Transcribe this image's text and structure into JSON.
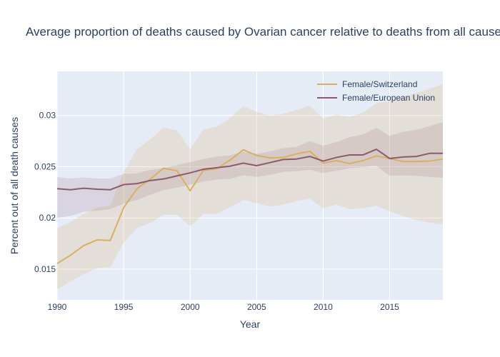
{
  "chart_data": {
    "type": "line",
    "title": "Average proportion of deaths caused by Ovarian cancer relative to deaths from all causes",
    "xlabel": "Year",
    "ylabel": "Percent out of all death causes",
    "xlim": [
      1990,
      2019
    ],
    "ylim": [
      0.012,
      0.0343
    ],
    "x_ticks": [
      1990,
      1995,
      2000,
      2005,
      2010,
      2015
    ],
    "x_tick_labels": [
      "1990",
      "1995",
      "2000",
      "2005",
      "2010",
      "2015"
    ],
    "y_ticks": [
      0.015,
      0.02,
      0.025,
      0.03
    ],
    "y_tick_labels": [
      "0.015",
      "0.02",
      "0.025",
      "0.03"
    ],
    "grid": true,
    "legend_position": "top-right",
    "x": [
      1990,
      1991,
      1992,
      1993,
      1994,
      1995,
      1996,
      1997,
      1998,
      1999,
      2000,
      2001,
      2002,
      2003,
      2004,
      2005,
      2006,
      2007,
      2008,
      2009,
      2010,
      2011,
      2012,
      2013,
      2014,
      2015,
      2016,
      2017,
      2018,
      2019
    ],
    "series": [
      {
        "name": "Female/Switzerland",
        "color": "#dcae62",
        "band_color": "rgba(220,174,98,0.2)",
        "values": [
          0.01555,
          0.01635,
          0.0173,
          0.01785,
          0.0178,
          0.021,
          0.02285,
          0.0238,
          0.02485,
          0.0246,
          0.02265,
          0.02465,
          0.0248,
          0.02565,
          0.02665,
          0.0261,
          0.02585,
          0.0259,
          0.02625,
          0.0265,
          0.02535,
          0.0256,
          0.0253,
          0.0256,
          0.02605,
          0.0258,
          0.0255,
          0.0255,
          0.02555,
          0.02575
        ],
        "upper": [
          0.019,
          0.0196,
          0.0204,
          0.021,
          0.0212,
          0.0245,
          0.0267,
          0.0277,
          0.0288,
          0.02855,
          0.0267,
          0.02865,
          0.0289,
          0.02975,
          0.0309,
          0.03035,
          0.03,
          0.03015,
          0.03055,
          0.03095,
          0.0297,
          0.0301,
          0.02985,
          0.0303,
          0.0312,
          0.0314,
          0.0318,
          0.0322,
          0.0326,
          0.0331
        ],
        "lower": [
          0.013,
          0.0138,
          0.0145,
          0.0151,
          0.0152,
          0.0176,
          0.019,
          0.0195,
          0.0203,
          0.0203,
          0.0192,
          0.0204,
          0.0204,
          0.02105,
          0.02175,
          0.02145,
          0.0211,
          0.0213,
          0.02165,
          0.02185,
          0.02095,
          0.0213,
          0.02085,
          0.02095,
          0.0212,
          0.02065,
          0.0202,
          0.0198,
          0.01955,
          0.01935
        ]
      },
      {
        "name": "Female/European Union",
        "color": "#8b5a6e",
        "band_color": "rgba(139,90,110,0.15)",
        "values": [
          0.02285,
          0.02275,
          0.0229,
          0.0228,
          0.02275,
          0.02325,
          0.02335,
          0.02365,
          0.0238,
          0.0241,
          0.0244,
          0.02475,
          0.0249,
          0.02505,
          0.02535,
          0.0251,
          0.0254,
          0.0257,
          0.02575,
          0.026,
          0.02555,
          0.0259,
          0.02615,
          0.02615,
          0.0267,
          0.0258,
          0.02595,
          0.026,
          0.0263,
          0.0263
        ],
        "upper": [
          0.024,
          0.02385,
          0.02395,
          0.02385,
          0.02385,
          0.0243,
          0.02435,
          0.0247,
          0.02485,
          0.02515,
          0.02545,
          0.02575,
          0.026,
          0.0261,
          0.02645,
          0.02625,
          0.0265,
          0.0268,
          0.02695,
          0.0275,
          0.02705,
          0.0274,
          0.0279,
          0.02815,
          0.0288,
          0.028,
          0.0284,
          0.0286,
          0.02895,
          0.02935
        ],
        "lower": [
          0.02,
          0.0202,
          0.0206,
          0.0207,
          0.02085,
          0.0214,
          0.02175,
          0.02225,
          0.0227,
          0.02295,
          0.02325,
          0.02355,
          0.02375,
          0.0238,
          0.02415,
          0.024,
          0.0242,
          0.0245,
          0.02455,
          0.0247,
          0.0244,
          0.0246,
          0.02485,
          0.02495,
          0.0251,
          0.0241,
          0.02415,
          0.0241,
          0.024,
          0.0239
        ]
      }
    ]
  }
}
